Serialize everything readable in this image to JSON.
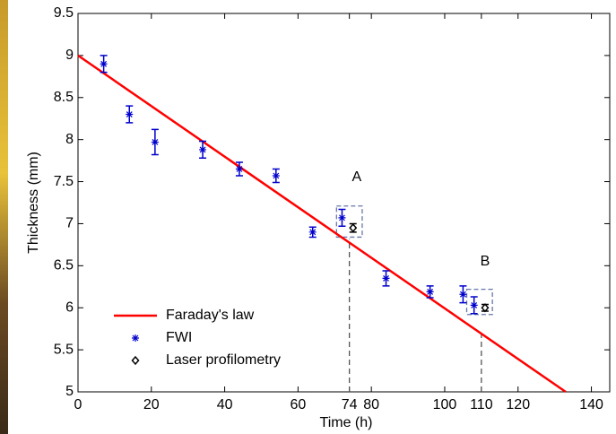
{
  "chart_data": {
    "type": "scatter",
    "xlabel": "Time (h)",
    "ylabel": "Thickness (mm)",
    "xlim": [
      0,
      145
    ],
    "ylim": [
      5,
      9.5
    ],
    "xticks": [
      0,
      20,
      40,
      60,
      74,
      80,
      100,
      110,
      120,
      140
    ],
    "yticks": [
      5,
      5.5,
      6,
      6.5,
      7,
      7.5,
      8,
      8.5,
      9,
      9.5
    ],
    "legend": "lower left",
    "series": [
      {
        "name": "Faraday's law",
        "type": "line",
        "color": "#ff0000",
        "x": [
          0,
          133
        ],
        "values": [
          9,
          5
        ]
      },
      {
        "name": "FWI",
        "type": "scatter",
        "marker": "asterisk",
        "color": "#0000cc",
        "x": [
          7,
          14,
          21,
          34,
          44,
          54,
          64,
          72,
          84,
          96,
          105,
          108
        ],
        "values": [
          8.9,
          8.3,
          7.97,
          7.88,
          7.65,
          7.57,
          6.9,
          7.07,
          6.35,
          6.19,
          6.16,
          6.03
        ],
        "errors": [
          0.1,
          0.1,
          0.15,
          0.1,
          0.08,
          0.08,
          0.06,
          0.1,
          0.09,
          0.07,
          0.1,
          0.1
        ]
      },
      {
        "name": "Laser profilometry",
        "type": "scatter",
        "marker": "diamond",
        "color": "#000000",
        "x": [
          75,
          111
        ],
        "values": [
          6.95,
          6.0
        ],
        "errors": [
          0.05,
          0.04
        ]
      }
    ],
    "annotations": [
      {
        "text": "A",
        "x": 76,
        "y": 7.55
      },
      {
        "text": "B",
        "x": 111,
        "y": 6.55
      }
    ],
    "highlight_boxes": [
      {
        "xlim": [
          70.5,
          77.5
        ],
        "ylim": [
          6.84,
          7.21
        ]
      },
      {
        "xlim": [
          106,
          113
        ],
        "ylim": [
          5.92,
          6.22
        ]
      }
    ],
    "reference_lines": [
      {
        "x": 74,
        "ylim": [
          5,
          6.82
        ]
      },
      {
        "x": 110,
        "ylim": [
          5,
          5.72
        ]
      }
    ]
  }
}
